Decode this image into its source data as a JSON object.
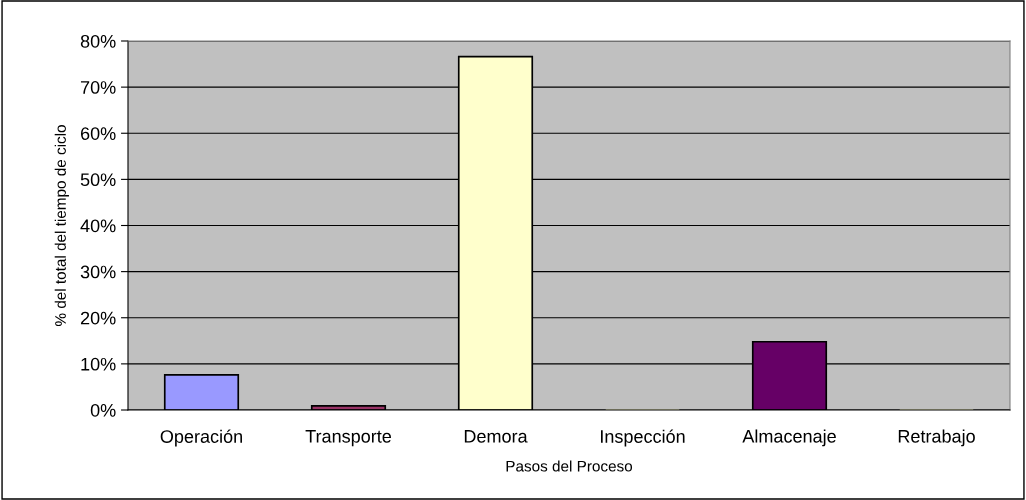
{
  "chart_data": {
    "type": "bar",
    "xlabel": "Pasos del Proceso",
    "ylabel": "% del total del tiempo de ciclo",
    "categories": [
      "Operación",
      "Transporte",
      "Demora",
      "Inspección",
      "Almacenaje",
      "Retrabajo"
    ],
    "values": [
      7.6,
      0.9,
      76.6,
      0,
      14.8,
      0
    ],
    "colors": [
      "#9999ff",
      "#993366",
      "#ffffcc",
      "#ffffcc",
      "#660066",
      "#ffffcc"
    ],
    "ylim": [
      0,
      80
    ],
    "yticks": [
      {
        "value": 0,
        "label": "0%"
      },
      {
        "value": 10,
        "label": "10%"
      },
      {
        "value": 20,
        "label": "20%"
      },
      {
        "value": 30,
        "label": "30%"
      },
      {
        "value": 40,
        "label": "40%"
      },
      {
        "value": 50,
        "label": "50%"
      },
      {
        "value": 60,
        "label": "60%"
      },
      {
        "value": 70,
        "label": "70%"
      },
      {
        "value": 80,
        "label": "80%"
      }
    ],
    "grid": "y",
    "legend": false
  }
}
